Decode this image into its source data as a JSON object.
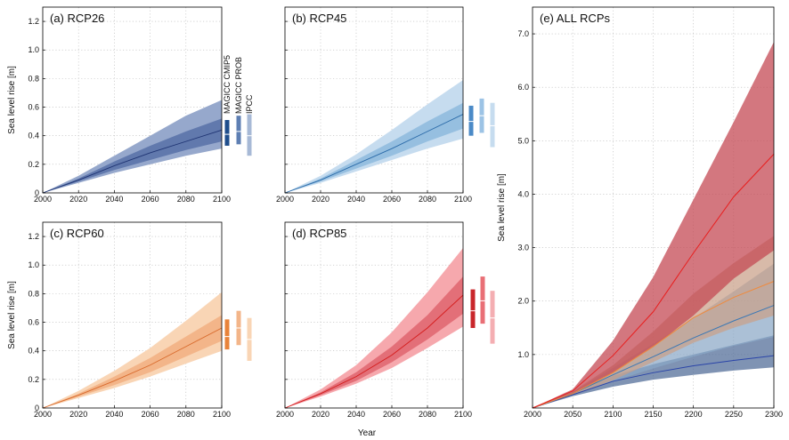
{
  "figure": {
    "shared_xlabel": "Year",
    "legend_labels": [
      "MAGICC CMIP5",
      "MAGICC PROB",
      "IPCC"
    ]
  },
  "chart_data": [
    {
      "id": "a",
      "type": "area",
      "title": "(a)  RCP26",
      "xlabel": "",
      "ylabel": "Sea level rise [m]",
      "xlim": [
        2000,
        2100
      ],
      "ylim": [
        0,
        1.3
      ],
      "xticks": [
        2000,
        2020,
        2040,
        2060,
        2080,
        2100
      ],
      "yticks": [
        0,
        0.2,
        0.4,
        0.6,
        0.8,
        1.0,
        1.2
      ],
      "ytick_labels": [
        "0",
        "0.2",
        "0.4",
        "0.6",
        "0.8",
        "1.0",
        "1.2"
      ],
      "grid": true,
      "colors": {
        "outer": "#96a8cc",
        "inner": "#6179ad",
        "median": "#1f3473"
      },
      "x": [
        2000,
        2020,
        2040,
        2060,
        2080,
        2100
      ],
      "series": [
        {
          "median": [
            0.0,
            0.09,
            0.19,
            0.28,
            0.36,
            0.44
          ],
          "inner_low": [
            0.0,
            0.08,
            0.16,
            0.23,
            0.3,
            0.36
          ],
          "inner_high": [
            0.0,
            0.1,
            0.22,
            0.33,
            0.43,
            0.52
          ],
          "outer_low": [
            0.0,
            0.07,
            0.14,
            0.2,
            0.26,
            0.31
          ],
          "outer_high": [
            0.0,
            0.12,
            0.26,
            0.4,
            0.54,
            0.65
          ]
        }
      ],
      "side_bars": [
        {
          "center": 0.41,
          "low": 0.33,
          "high": 0.51,
          "color": "#1f4e8c"
        },
        {
          "center": 0.43,
          "low": 0.34,
          "high": 0.54,
          "color": "#5e7fb3"
        },
        {
          "center": 0.4,
          "low": 0.26,
          "high": 0.55,
          "color": "#a7b9d6"
        }
      ]
    },
    {
      "id": "b",
      "type": "area",
      "title": "(b)  RCP45",
      "xlabel": "",
      "ylabel": "",
      "xlim": [
        2000,
        2100
      ],
      "ylim": [
        0,
        1.3
      ],
      "xticks": [
        2000,
        2020,
        2040,
        2060,
        2080,
        2100
      ],
      "yticks": [
        0,
        0.2,
        0.4,
        0.6,
        0.8,
        1.0,
        1.2
      ],
      "ytick_labels": [],
      "grid": true,
      "colors": {
        "outer": "#c6dcef",
        "inner": "#96bfe0",
        "median": "#2a6aa8"
      },
      "x": [
        2000,
        2020,
        2040,
        2060,
        2080,
        2100
      ],
      "series": [
        {
          "median": [
            0.0,
            0.09,
            0.2,
            0.31,
            0.43,
            0.55
          ],
          "inner_low": [
            0.0,
            0.08,
            0.17,
            0.26,
            0.36,
            0.45
          ],
          "inner_high": [
            0.0,
            0.1,
            0.23,
            0.36,
            0.5,
            0.63
          ],
          "outer_low": [
            0.0,
            0.07,
            0.15,
            0.23,
            0.31,
            0.38
          ],
          "outer_high": [
            0.0,
            0.12,
            0.27,
            0.44,
            0.62,
            0.79
          ]
        }
      ],
      "side_bars": [
        {
          "center": 0.5,
          "low": 0.4,
          "high": 0.61,
          "color": "#4b8ac7"
        },
        {
          "center": 0.54,
          "low": 0.42,
          "high": 0.66,
          "color": "#9cc3e5"
        },
        {
          "center": 0.47,
          "low": 0.32,
          "high": 0.63,
          "color": "#c6dcef"
        }
      ]
    },
    {
      "id": "c",
      "type": "area",
      "title": "(c)  RCP60",
      "xlabel": "",
      "ylabel": "Sea level rise [m]",
      "xlim": [
        2000,
        2100
      ],
      "ylim": [
        0,
        1.3
      ],
      "xticks": [
        2000,
        2020,
        2040,
        2060,
        2080,
        2100
      ],
      "yticks": [
        0,
        0.2,
        0.4,
        0.6,
        0.8,
        1.0,
        1.2
      ],
      "ytick_labels": [
        "0",
        "0.2",
        "0.4",
        "0.6",
        "0.8",
        "1.0",
        "1.2"
      ],
      "grid": true,
      "colors": {
        "outer": "#f9d5b5",
        "inner": "#f3b589",
        "median": "#d86a2c"
      },
      "x": [
        2000,
        2020,
        2040,
        2060,
        2080,
        2100
      ],
      "series": [
        {
          "median": [
            0.0,
            0.09,
            0.19,
            0.3,
            0.43,
            0.56
          ],
          "inner_low": [
            0.0,
            0.08,
            0.16,
            0.25,
            0.36,
            0.47
          ],
          "inner_high": [
            0.0,
            0.1,
            0.22,
            0.35,
            0.5,
            0.65
          ],
          "outer_low": [
            0.0,
            0.07,
            0.14,
            0.22,
            0.31,
            0.4
          ],
          "outer_high": [
            0.0,
            0.12,
            0.26,
            0.42,
            0.61,
            0.81
          ]
        }
      ],
      "side_bars": [
        {
          "center": 0.5,
          "low": 0.41,
          "high": 0.62,
          "color": "#e8833a"
        },
        {
          "center": 0.56,
          "low": 0.44,
          "high": 0.68,
          "color": "#f3b589"
        },
        {
          "center": 0.48,
          "low": 0.33,
          "high": 0.63,
          "color": "#f9d5b5"
        }
      ]
    },
    {
      "id": "d",
      "type": "area",
      "title": "(d)  RCP85",
      "xlabel": "",
      "ylabel": "",
      "xlim": [
        2000,
        2100
      ],
      "ylim": [
        0,
        1.3
      ],
      "xticks": [
        2000,
        2020,
        2040,
        2060,
        2080,
        2100
      ],
      "yticks": [
        0,
        0.2,
        0.4,
        0.6,
        0.8,
        1.0,
        1.2
      ],
      "ytick_labels": [],
      "grid": true,
      "colors": {
        "outer": "#f6a8ad",
        "inner": "#e36f78",
        "median": "#d41c1c"
      },
      "x": [
        2000,
        2020,
        2040,
        2060,
        2080,
        2100
      ],
      "series": [
        {
          "median": [
            0.0,
            0.1,
            0.22,
            0.37,
            0.56,
            0.79
          ],
          "inner_low": [
            0.0,
            0.09,
            0.19,
            0.32,
            0.48,
            0.66
          ],
          "inner_high": [
            0.0,
            0.11,
            0.25,
            0.43,
            0.65,
            0.92
          ],
          "outer_low": [
            0.0,
            0.08,
            0.17,
            0.28,
            0.42,
            0.57
          ],
          "outer_high": [
            0.0,
            0.13,
            0.3,
            0.53,
            0.81,
            1.12
          ]
        }
      ],
      "side_bars": [
        {
          "center": 0.68,
          "low": 0.56,
          "high": 0.83,
          "color": "#c9262b"
        },
        {
          "center": 0.75,
          "low": 0.59,
          "high": 0.92,
          "color": "#e96f76"
        },
        {
          "center": 0.63,
          "low": 0.45,
          "high": 0.82,
          "color": "#f4aeb2"
        }
      ]
    },
    {
      "id": "e",
      "type": "area",
      "title": "(e)  ALL RCPs",
      "xlabel": "",
      "ylabel": "Sea level rise [m]",
      "xlim": [
        2000,
        2300
      ],
      "ylim": [
        0,
        7.5
      ],
      "xticks": [
        2000,
        2050,
        2100,
        2150,
        2200,
        2250,
        2300
      ],
      "yticks": [
        1,
        2,
        3,
        4,
        5,
        6,
        7
      ],
      "ytick_labels": [
        "1.0",
        "2.0",
        "3.0",
        "4.0",
        "5.0",
        "6.0",
        "7.0"
      ],
      "grid": true,
      "x": [
        2000,
        2050,
        2100,
        2150,
        2200,
        2250,
        2300
      ],
      "series": [
        {
          "color_band": "#4d6a96",
          "band_opacity": 0.72,
          "color_line": "#2a44a8",
          "median": [
            0.0,
            0.25,
            0.5,
            0.66,
            0.79,
            0.89,
            0.98
          ],
          "low": [
            0.0,
            0.22,
            0.4,
            0.53,
            0.62,
            0.7,
            0.76
          ],
          "high": [
            0.0,
            0.28,
            0.6,
            0.82,
            1.0,
            1.18,
            1.36
          ]
        },
        {
          "color_band": "#8aa8c6",
          "band_opacity": 0.72,
          "color_line": "#3a78b5",
          "median": [
            0.0,
            0.27,
            0.62,
            0.96,
            1.31,
            1.63,
            1.92
          ],
          "low": [
            0.0,
            0.24,
            0.5,
            0.74,
            0.96,
            1.16,
            1.33
          ],
          "high": [
            0.0,
            0.3,
            0.75,
            1.2,
            1.68,
            2.18,
            2.7
          ]
        },
        {
          "color_band": "#c9a088",
          "band_opacity": 0.72,
          "color_line": "#f08a3c",
          "median": [
            0.0,
            0.27,
            0.66,
            1.15,
            1.69,
            2.07,
            2.37
          ],
          "low": [
            0.0,
            0.24,
            0.52,
            0.86,
            1.22,
            1.5,
            1.73
          ],
          "high": [
            0.0,
            0.31,
            0.8,
            1.43,
            2.14,
            2.71,
            3.22
          ]
        },
        {
          "color_band": "#c44a54",
          "band_opacity": 0.75,
          "color_line": "#e81e1e",
          "median": [
            0.0,
            0.32,
            0.98,
            1.8,
            2.9,
            3.95,
            4.75
          ],
          "low": [
            0.0,
            0.27,
            0.66,
            1.14,
            1.73,
            2.42,
            2.95
          ],
          "high": [
            0.0,
            0.35,
            1.26,
            2.45,
            3.9,
            5.35,
            6.85
          ]
        }
      ]
    }
  ]
}
